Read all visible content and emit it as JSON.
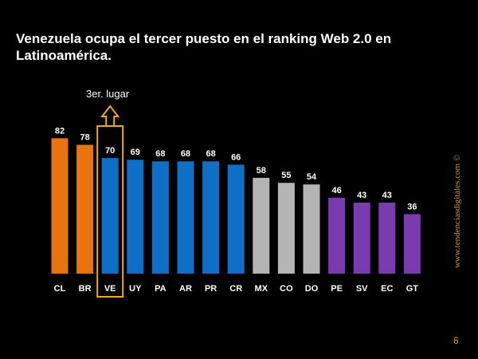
{
  "slide": {
    "title": "Venezuela ocupa el tercer puesto en el ranking Web 2.0 en Latinoamérica.",
    "watermark": "www.tendenciasdigitales.com ©",
    "page_number": "6",
    "annotation": "3er. lugar"
  },
  "colors": {
    "background": "#000000",
    "orange": "#e8730f",
    "blue": "#0f6fc6",
    "gray": "#b4b4b4",
    "purple": "#7b3bb0",
    "highlight": "#f2a81d",
    "text": "#ffffff"
  },
  "chart_data": {
    "type": "bar",
    "title": "Venezuela ocupa el tercer puesto en el ranking Web 2.0 en Latinoamérica.",
    "categories": [
      "CL",
      "BR",
      "VE",
      "UY",
      "PA",
      "AR",
      "PR",
      "CR",
      "MX",
      "CO",
      "DO",
      "PE",
      "SV",
      "EC",
      "GT"
    ],
    "values": [
      82,
      78,
      70,
      69,
      68,
      68,
      68,
      66,
      58,
      55,
      54,
      46,
      43,
      43,
      36
    ],
    "bar_colors": [
      "orange",
      "orange",
      "blue",
      "blue",
      "blue",
      "blue",
      "blue",
      "blue",
      "gray",
      "gray",
      "gray",
      "purple",
      "purple",
      "purple",
      "purple"
    ],
    "highlighted_category": "VE",
    "ylim": [
      0,
      100
    ],
    "grid": false,
    "data_labels": true
  }
}
